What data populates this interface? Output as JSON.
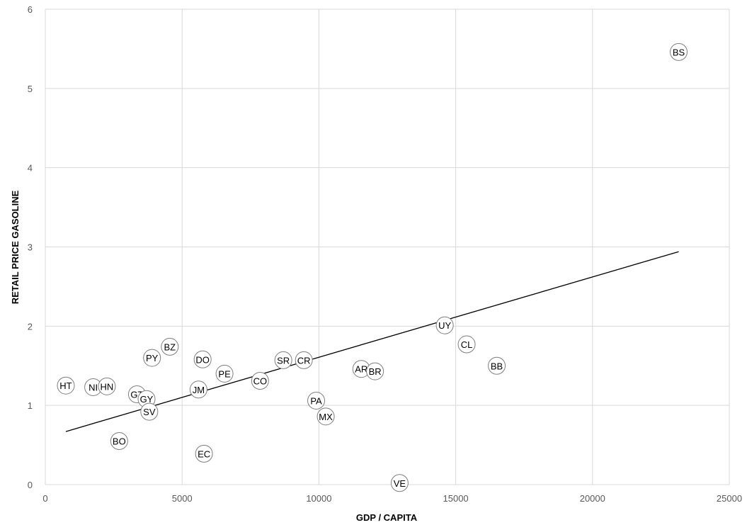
{
  "chart_data": {
    "type": "scatter",
    "title": "",
    "xlabel": "GDP / CAPITA",
    "ylabel": "RETAIL PRICE GASOLINE",
    "xlim": [
      0,
      25000
    ],
    "ylim": [
      0,
      6
    ],
    "xticks": [
      0,
      5000,
      10000,
      15000,
      20000,
      25000
    ],
    "yticks": [
      0,
      1,
      2,
      3,
      4,
      5,
      6
    ],
    "grid": true,
    "legend": "none",
    "series": [
      {
        "points": [
          {
            "label": "HT",
            "x": 750,
            "y": 1.25
          },
          {
            "label": "NI",
            "x": 1750,
            "y": 1.23
          },
          {
            "label": "HN",
            "x": 2250,
            "y": 1.24
          },
          {
            "label": "BO",
            "x": 2700,
            "y": 0.55
          },
          {
            "label": "GT",
            "x": 3350,
            "y": 1.14
          },
          {
            "label": "GY",
            "x": 3700,
            "y": 1.08
          },
          {
            "label": "SV",
            "x": 3800,
            "y": 0.92
          },
          {
            "label": "PY",
            "x": 3900,
            "y": 1.6
          },
          {
            "label": "BZ",
            "x": 4550,
            "y": 1.74
          },
          {
            "label": "JM",
            "x": 5600,
            "y": 1.2
          },
          {
            "label": "DO",
            "x": 5750,
            "y": 1.58
          },
          {
            "label": "EC",
            "x": 5800,
            "y": 0.39
          },
          {
            "label": "PE",
            "x": 6550,
            "y": 1.4
          },
          {
            "label": "CO",
            "x": 7850,
            "y": 1.31
          },
          {
            "label": "SR",
            "x": 8700,
            "y": 1.57
          },
          {
            "label": "CR",
            "x": 9450,
            "y": 1.57
          },
          {
            "label": "PA",
            "x": 9900,
            "y": 1.06
          },
          {
            "label": "MX",
            "x": 10250,
            "y": 0.86
          },
          {
            "label": "AR",
            "x": 11550,
            "y": 1.46
          },
          {
            "label": "BR",
            "x": 12050,
            "y": 1.43
          },
          {
            "label": "VE",
            "x": 12950,
            "y": 0.02
          },
          {
            "label": "UY",
            "x": 14600,
            "y": 2.01
          },
          {
            "label": "CL",
            "x": 15400,
            "y": 1.77
          },
          {
            "label": "BB",
            "x": 16500,
            "y": 1.5
          },
          {
            "label": "BS",
            "x": 23150,
            "y": 5.46
          }
        ]
      }
    ],
    "trendline": {
      "type": "linear",
      "from": [
        750,
        0.67
      ],
      "to": [
        23150,
        2.94
      ]
    },
    "colors": {
      "grid": "#d9d9d9",
      "marker_stroke": "#7f7f7f",
      "marker_fill": "#ffffff",
      "trendline": "#000000",
      "tick_text": "#595959"
    }
  }
}
